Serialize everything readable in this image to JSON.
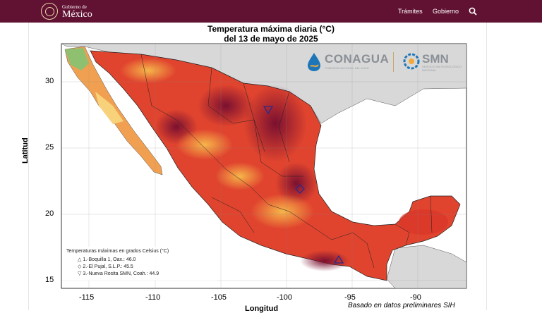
{
  "header": {
    "logo_small": "Gobierno de",
    "logo_big": "México",
    "nav": [
      {
        "label": "Trámites"
      },
      {
        "label": "Gobierno"
      }
    ],
    "search_icon": "search-icon",
    "colors": {
      "bar": "#611232",
      "text": "#ffffff"
    }
  },
  "map": {
    "title_line1": "Temperatura máxima diaria (°C)",
    "title_line2": "del 13 de mayo de 2025",
    "y_label": "Latitud",
    "x_label": "Longitud",
    "y_ticks": [
      "30",
      "25",
      "20",
      "15"
    ],
    "x_ticks": [
      "-115",
      "-110",
      "-105",
      "-100",
      "-95",
      "-90"
    ],
    "legend": {
      "title": "Temperaturas máximas en grados Celsius (°C)",
      "items": [
        {
          "symbol": "△",
          "text": "1.-Boquilla 1, Oax.: 46.0"
        },
        {
          "symbol": "◇",
          "text": "2.-El Pujal, S.L.P.: 45.5"
        },
        {
          "symbol": "▽",
          "text": "3.-Nueva Rosita SMN, Coah.: 44.9"
        }
      ]
    },
    "brand_left": "CONAGUA",
    "brand_left_sub": "COMISIÓN NACIONAL DEL AGUA",
    "brand_right": "SMN",
    "brand_right_sub": "SERVICIO METEOROLÓGICO NACIONAL",
    "footnote": "Basado en datos preliminares SIH"
  }
}
